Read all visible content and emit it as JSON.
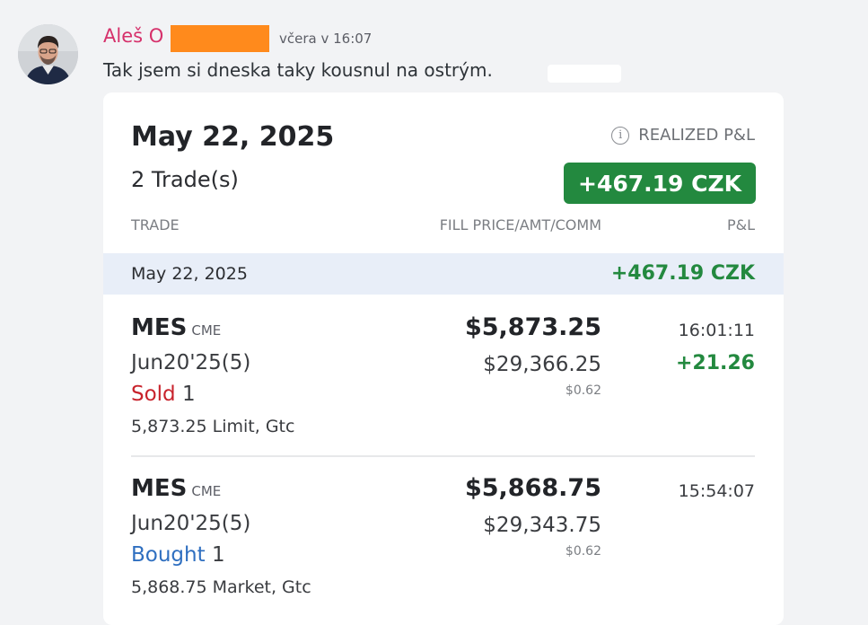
{
  "message": {
    "author": "Aleš O",
    "timestamp": "včera v 16:07",
    "text": "Tak jsem si dneska taky kousnul na ostrým."
  },
  "colors": {
    "author": "#d6316b",
    "positive": "#23893f",
    "sold": "#c8232c",
    "bought": "#2f6fc0",
    "band": "#e8eef8",
    "redaction": "#ff8a1c"
  },
  "card": {
    "date": "May 22, 2025",
    "trade_count": "2 Trade(s)",
    "realized_label": "REALIZED P&L",
    "info_icon": "i",
    "realized_value": "+467.19 CZK",
    "columns": {
      "trade": "TRADE",
      "fill": "FILL PRICE/AMT/COMM",
      "pl": "P&L"
    },
    "day": {
      "date": "May 22, 2025",
      "pl": "+467.19 CZK"
    },
    "trades": [
      {
        "symbol": "MES",
        "exchange": "CME",
        "contract": "Jun20'25(5)",
        "side": "Sold",
        "qty": "1",
        "order": "5,873.25 Limit, Gtc",
        "price": "$5,873.25",
        "amount": "$29,366.25",
        "comm": "$0.62",
        "time": "16:01:11",
        "pl": "+21.26"
      },
      {
        "symbol": "MES",
        "exchange": "CME",
        "contract": "Jun20'25(5)",
        "side": "Bought",
        "qty": "1",
        "order": "5,868.75 Market, Gtc",
        "price": "$5,868.75",
        "amount": "$29,343.75",
        "comm": "$0.62",
        "time": "15:54:07",
        "pl": ""
      }
    ]
  }
}
